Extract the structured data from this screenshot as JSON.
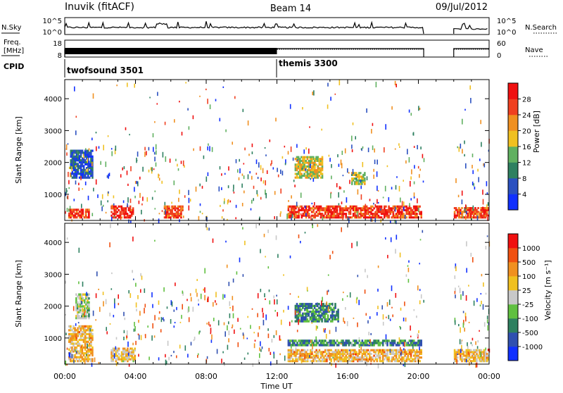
{
  "header": {
    "station": "Inuvik (fitACF)",
    "beam": "Beam 14",
    "date": "09/Jul/2012"
  },
  "top_panels": {
    "nsky": {
      "left_label": "N.Sky",
      "left_ticks": [
        "10^5",
        "10^0"
      ],
      "right_label": "N.Search",
      "right_ticks": [
        "10^5",
        "10^0"
      ]
    },
    "freq": {
      "left_label_line1": "Freq.",
      "left_label_line2": "[MHz]",
      "left_ticks": [
        "18",
        "8"
      ],
      "right_label": "Nave",
      "right_ticks": [
        "60",
        "0"
      ]
    },
    "cpid": {
      "label": "CPID",
      "segments": [
        {
          "name": "twofsound 3501",
          "start_hour": 0,
          "end_hour": 12
        },
        {
          "name": "themis 3300",
          "start_hour": 12,
          "end_hour": 24
        }
      ]
    }
  },
  "x_axis": {
    "label": "Time UT",
    "ticks": [
      "00:00",
      "04:00",
      "08:00",
      "12:00",
      "16:00",
      "20:00",
      "00:00"
    ],
    "range_hours": [
      0,
      24
    ]
  },
  "chart_data": [
    {
      "type": "heatmap",
      "title": "",
      "ylabel": "Slant Range [km]",
      "yticks": [
        "1000",
        "2000",
        "3000",
        "4000"
      ],
      "ylim": [
        180,
        4600
      ],
      "colorbar_label": "Power [dB]",
      "colorbar_ticks": [
        "4",
        "8",
        "12",
        "16",
        "20",
        "24",
        "28"
      ],
      "colormap": [
        "#1030ff",
        "#2a50c0",
        "#2e8060",
        "#60b060",
        "#f0c020",
        "#f09020",
        "#f04020",
        "#f01010"
      ],
      "regions": [
        {
          "x0": 0.2,
          "x1": 1.4,
          "y0": 250,
          "y1": 550,
          "level": 0.85
        },
        {
          "x0": 2.6,
          "x1": 3.9,
          "y0": 250,
          "y1": 650,
          "level": 0.95
        },
        {
          "x0": 5.6,
          "x1": 6.7,
          "y0": 250,
          "y1": 650,
          "level": 0.85
        },
        {
          "x0": 12.6,
          "x1": 20.2,
          "y0": 250,
          "y1": 650,
          "level": 0.9
        },
        {
          "x0": 13.0,
          "x1": 14.6,
          "y0": 1500,
          "y1": 2200,
          "level": 0.55
        },
        {
          "x0": 0.3,
          "x1": 1.6,
          "y0": 1500,
          "y1": 2400,
          "level": 0.15
        },
        {
          "x0": 22.0,
          "x1": 24.0,
          "y0": 250,
          "y1": 600,
          "level": 0.9
        },
        {
          "x0": 16.2,
          "x1": 17.0,
          "y0": 1300,
          "y1": 1700,
          "level": 0.5
        }
      ]
    },
    {
      "type": "heatmap",
      "title": "",
      "ylabel": "Slant Range [km]",
      "yticks": [
        "1000",
        "2000",
        "3000",
        "4000"
      ],
      "ylim": [
        180,
        4600
      ],
      "colorbar_label": "Velocity [m s⁻¹]",
      "colorbar_ticks": [
        "1000",
        "500",
        "100",
        "25",
        "-25",
        "-100",
        "-500",
        "-1000"
      ],
      "colormap": [
        "#1030ff",
        "#3050b0",
        "#2e8060",
        "#60c040",
        "#c8c8c8",
        "#f0c020",
        "#f09020",
        "#f05010",
        "#f01010"
      ],
      "regions": [
        {
          "x0": 0.2,
          "x1": 1.6,
          "y0": 250,
          "y1": 1400,
          "level": 0.65
        },
        {
          "x0": 2.6,
          "x1": 4.0,
          "y0": 250,
          "y1": 700,
          "level": 0.6
        },
        {
          "x0": 0.6,
          "x1": 1.4,
          "y0": 1600,
          "y1": 2400,
          "level": 0.45
        },
        {
          "x0": 12.6,
          "x1": 20.2,
          "y0": 250,
          "y1": 650,
          "level": 0.65
        },
        {
          "x0": 13.0,
          "x1": 15.5,
          "y0": 1500,
          "y1": 2100,
          "level": 0.25
        },
        {
          "x0": 12.6,
          "x1": 20.2,
          "y0": 750,
          "y1": 950,
          "level": 0.25
        },
        {
          "x0": 22.0,
          "x1": 24.0,
          "y0": 250,
          "y1": 650,
          "level": 0.65
        }
      ]
    }
  ]
}
